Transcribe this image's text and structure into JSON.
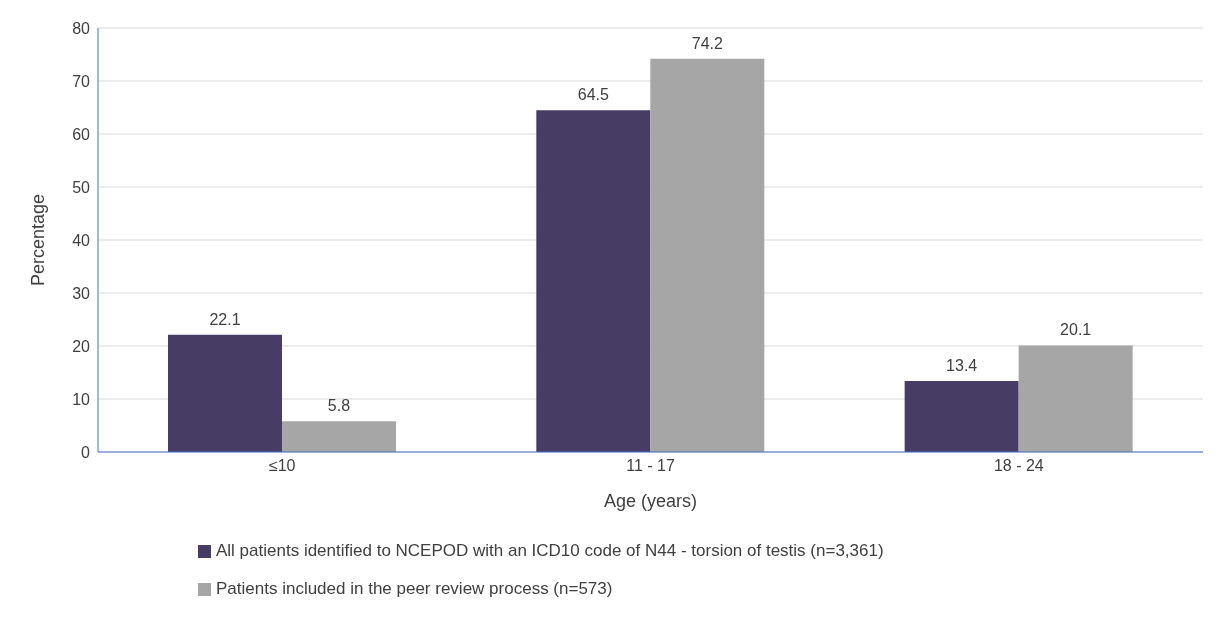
{
  "chart_data": {
    "type": "bar",
    "xlabel": "Age (years)",
    "ylabel": "Percentage",
    "categories": [
      "≤10",
      "11 - 17",
      "18 - 24"
    ],
    "series": [
      {
        "name": "All patients identified to NCEPOD with an ICD10 code of N44 - torsion of testis (n=3,361)",
        "color": "#463c64",
        "values": [
          22.1,
          64.5,
          13.4
        ]
      },
      {
        "name": "Patients included in the peer review process (n=573)",
        "color": "#a6a6a6",
        "values": [
          5.8,
          74.2,
          20.1
        ]
      }
    ],
    "ylim": [
      0,
      80
    ],
    "yticks": [
      0,
      10,
      20,
      30,
      40,
      50,
      60,
      70,
      80
    ],
    "grid": "y",
    "legend": "bottom",
    "data_labels": true
  }
}
